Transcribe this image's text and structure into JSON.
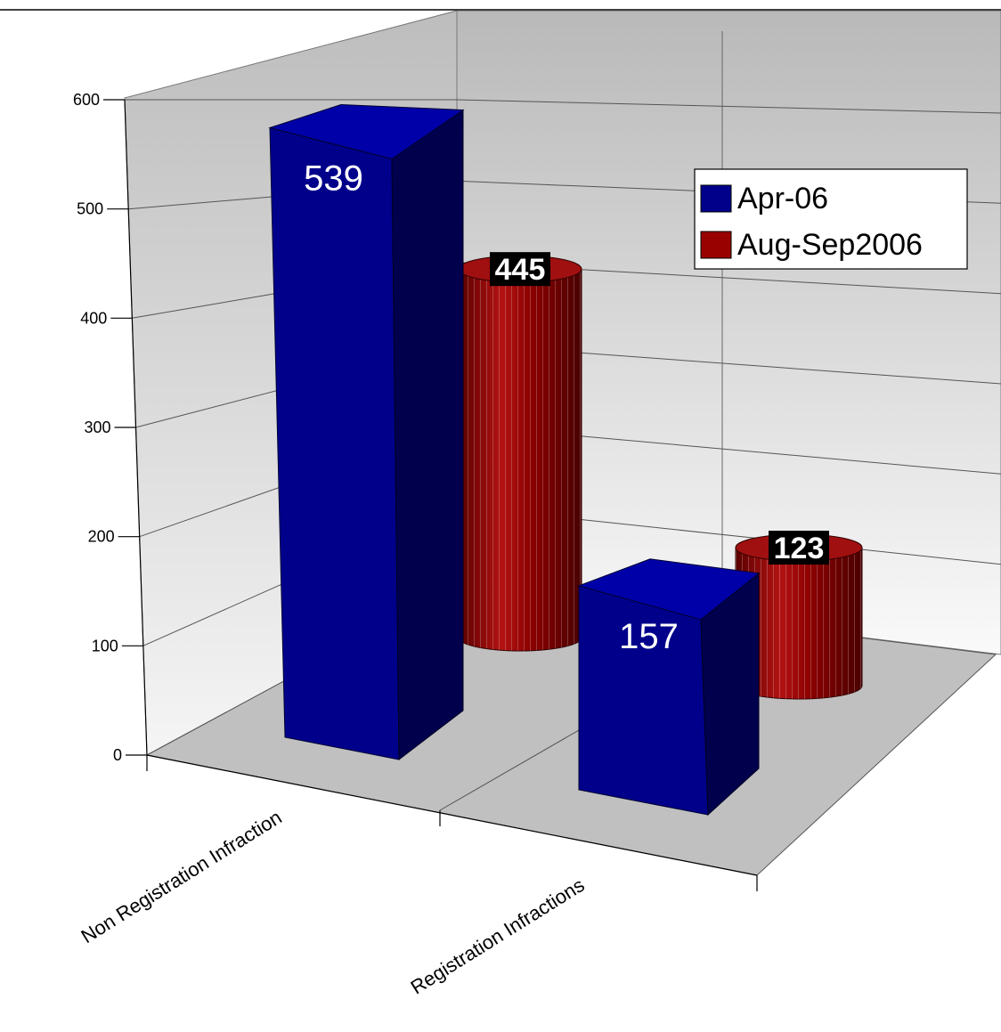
{
  "chart_data": {
    "type": "bar",
    "title": "",
    "xlabel": "",
    "ylabel": "",
    "categories": [
      "Non Registration Infraction",
      "Registration Infractions"
    ],
    "series": [
      {
        "name": "Apr-06",
        "values": [
          539,
          157
        ],
        "shape": "box",
        "color": "#00008b",
        "data_labels": [
          "539",
          "157"
        ]
      },
      {
        "name": "Aug-Sep2006",
        "values": [
          445,
          123
        ],
        "shape": "cylinder",
        "color": "#990000",
        "data_labels": [
          "445",
          "123"
        ]
      }
    ],
    "ylim": [
      0,
      600
    ],
    "yticks": [
      0,
      100,
      200,
      300,
      400,
      500,
      600
    ],
    "ytick_labels": [
      "0",
      "100",
      "200",
      "300",
      "400",
      "500",
      "600"
    ],
    "grid": true,
    "three_d": true,
    "legend": {
      "position": "top-right",
      "entries": [
        "Apr-06",
        "Aug-Sep2006"
      ]
    },
    "colors": {
      "blue": "#00008b",
      "red": "#990000",
      "floor": "#c0c0c0",
      "walls": "#d8d8d8"
    }
  }
}
